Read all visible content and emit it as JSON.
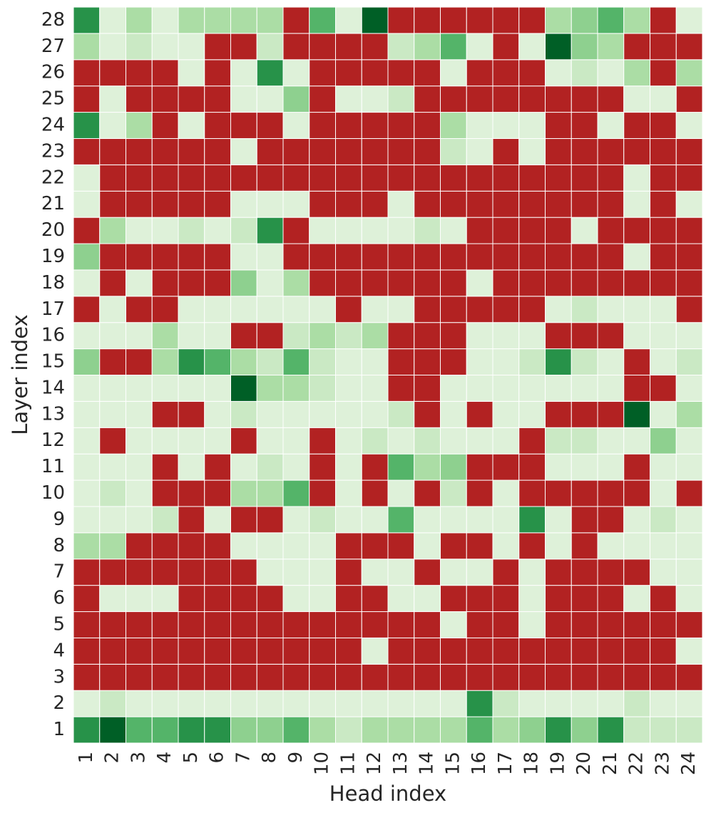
{
  "chart_data": {
    "type": "heatmap",
    "x_label": "Head index",
    "y_label": "Layer index",
    "x": [
      1,
      2,
      3,
      4,
      5,
      6,
      7,
      8,
      9,
      10,
      11,
      12,
      13,
      14,
      15,
      16,
      17,
      18,
      19,
      20,
      21,
      22,
      23,
      24
    ],
    "y": [
      1,
      2,
      3,
      4,
      5,
      6,
      7,
      8,
      9,
      10,
      11,
      12,
      13,
      14,
      15,
      16,
      17,
      18,
      19,
      20,
      21,
      22,
      23,
      24,
      25,
      26,
      27,
      28
    ],
    "colormap": "Greens",
    "vmin": 0,
    "vmax": 1,
    "null_color": "#b22222",
    "z": [
      [
        0.7,
        0.9,
        0.55,
        0.55,
        0.7,
        0.7,
        0.4,
        0.4,
        0.55,
        0.3,
        0.15,
        0.3,
        0.3,
        0.3,
        0.3,
        0.55,
        0.3,
        0.4,
        0.7,
        0.4,
        0.7,
        0.15,
        0.15,
        0.15
      ],
      [
        0.05,
        0.15,
        0.05,
        0.05,
        0.05,
        0.05,
        0.05,
        0.05,
        0.05,
        0.05,
        0.05,
        0.05,
        0.05,
        0.05,
        0.05,
        0.7,
        0.15,
        0.05,
        0.05,
        0.05,
        0.05,
        0.15,
        0.05,
        0.05
      ],
      [
        null,
        null,
        null,
        null,
        null,
        null,
        null,
        null,
        null,
        null,
        null,
        null,
        null,
        null,
        null,
        null,
        null,
        null,
        null,
        null,
        null,
        null,
        null,
        null
      ],
      [
        null,
        null,
        null,
        null,
        null,
        null,
        null,
        null,
        null,
        null,
        null,
        0.05,
        null,
        null,
        null,
        null,
        null,
        null,
        null,
        null,
        null,
        null,
        null,
        0.05
      ],
      [
        null,
        null,
        null,
        null,
        null,
        null,
        null,
        null,
        null,
        null,
        null,
        null,
        null,
        null,
        0.05,
        null,
        null,
        0.05,
        null,
        null,
        null,
        null,
        null,
        null
      ],
      [
        null,
        0.05,
        0.05,
        0.05,
        null,
        null,
        null,
        null,
        0.05,
        0.05,
        null,
        null,
        0.05,
        0.05,
        null,
        null,
        null,
        0.05,
        null,
        null,
        null,
        0.05,
        null,
        0.05
      ],
      [
        null,
        null,
        null,
        null,
        null,
        null,
        null,
        0.05,
        0.05,
        0.05,
        null,
        0.05,
        0.05,
        null,
        0.05,
        0.05,
        null,
        0.05,
        null,
        null,
        null,
        null,
        0.05,
        0.05
      ],
      [
        0.3,
        0.3,
        null,
        null,
        null,
        null,
        0.05,
        0.05,
        0.05,
        0.05,
        null,
        null,
        null,
        0.05,
        null,
        null,
        0.05,
        null,
        0.05,
        null,
        0.05,
        0.05,
        0.05,
        0.05
      ],
      [
        0.05,
        0.05,
        0.05,
        0.15,
        null,
        0.05,
        null,
        null,
        0.05,
        0.15,
        0.05,
        0.05,
        0.55,
        0.05,
        0.05,
        0.05,
        0.05,
        0.7,
        0.05,
        null,
        null,
        0.05,
        0.15,
        0.05
      ],
      [
        0.05,
        0.15,
        0.05,
        null,
        null,
        null,
        0.3,
        0.3,
        0.55,
        null,
        0.05,
        null,
        0.05,
        null,
        0.15,
        null,
        0.05,
        null,
        null,
        null,
        null,
        null,
        0.05,
        null
      ],
      [
        0.05,
        0.05,
        0.05,
        null,
        0.05,
        null,
        0.05,
        0.15,
        0.05,
        null,
        0.05,
        null,
        0.55,
        0.3,
        0.4,
        null,
        null,
        null,
        0.05,
        0.05,
        0.05,
        null,
        0.05,
        0.05
      ],
      [
        0.05,
        null,
        0.05,
        0.05,
        0.05,
        0.05,
        null,
        0.05,
        0.05,
        null,
        0.05,
        0.15,
        0.05,
        0.15,
        0.05,
        0.05,
        0.05,
        null,
        0.15,
        0.15,
        0.05,
        0.05,
        0.4,
        0.05
      ],
      [
        0.05,
        0.05,
        0.05,
        null,
        null,
        0.05,
        0.15,
        0.05,
        0.05,
        0.05,
        0.05,
        0.05,
        0.15,
        null,
        0.05,
        null,
        0.05,
        0.05,
        null,
        null,
        null,
        0.9,
        0.05,
        0.3
      ],
      [
        0.05,
        0.05,
        0.05,
        0.05,
        0.05,
        0.05,
        0.9,
        0.3,
        0.3,
        0.15,
        0.05,
        0.05,
        null,
        null,
        0.05,
        0.05,
        0.05,
        0.05,
        0.05,
        0.05,
        0.05,
        null,
        null,
        0.05
      ],
      [
        0.4,
        null,
        null,
        0.3,
        0.7,
        0.55,
        0.3,
        0.15,
        0.55,
        0.15,
        0.05,
        0.05,
        null,
        null,
        null,
        0.05,
        0.05,
        0.15,
        0.7,
        0.15,
        0.05,
        null,
        0.05,
        0.15
      ],
      [
        0.05,
        0.05,
        0.05,
        0.3,
        0.05,
        0.05,
        null,
        null,
        0.15,
        0.3,
        0.15,
        0.3,
        null,
        null,
        null,
        0.05,
        0.05,
        0.05,
        null,
        null,
        null,
        0.05,
        0.05,
        0.05
      ],
      [
        null,
        0.05,
        null,
        null,
        0.05,
        0.05,
        0.05,
        0.05,
        0.05,
        0.05,
        null,
        0.05,
        0.05,
        null,
        null,
        null,
        null,
        null,
        0.05,
        0.15,
        0.05,
        0.05,
        0.05,
        null
      ],
      [
        0.05,
        null,
        0.05,
        null,
        null,
        null,
        0.4,
        0.05,
        0.3,
        null,
        null,
        null,
        null,
        null,
        null,
        0.05,
        null,
        null,
        null,
        null,
        null,
        null,
        null,
        null
      ],
      [
        0.4,
        null,
        null,
        null,
        null,
        null,
        0.05,
        0.05,
        null,
        null,
        null,
        null,
        null,
        null,
        null,
        null,
        null,
        null,
        null,
        null,
        null,
        0.05,
        null,
        null
      ],
      [
        null,
        0.3,
        0.05,
        0.05,
        0.15,
        0.05,
        0.15,
        0.7,
        null,
        0.05,
        0.05,
        0.05,
        0.05,
        0.15,
        0.05,
        null,
        null,
        null,
        null,
        0.05,
        null,
        null,
        null,
        null
      ],
      [
        0.05,
        null,
        null,
        null,
        null,
        null,
        0.05,
        0.05,
        0.05,
        null,
        null,
        null,
        0.05,
        null,
        null,
        null,
        null,
        null,
        null,
        null,
        null,
        0.05,
        null,
        0.05
      ],
      [
        0.05,
        null,
        null,
        null,
        null,
        null,
        null,
        null,
        null,
        null,
        null,
        null,
        null,
        null,
        null,
        null,
        null,
        null,
        null,
        null,
        null,
        0.05,
        null,
        null
      ],
      [
        null,
        null,
        null,
        null,
        null,
        null,
        0.05,
        null,
        null,
        null,
        null,
        null,
        null,
        null,
        0.15,
        0.05,
        null,
        0.05,
        null,
        null,
        null,
        null,
        null,
        null
      ],
      [
        0.7,
        0.05,
        0.3,
        null,
        0.05,
        null,
        null,
        null,
        0.05,
        null,
        null,
        null,
        null,
        null,
        0.3,
        0.05,
        0.05,
        0.05,
        null,
        null,
        0.05,
        null,
        null,
        0.05
      ],
      [
        null,
        0.05,
        null,
        null,
        null,
        null,
        0.05,
        0.05,
        0.4,
        null,
        0.05,
        0.05,
        0.15,
        null,
        null,
        null,
        null,
        null,
        null,
        null,
        null,
        0.05,
        0.05,
        null
      ],
      [
        null,
        null,
        null,
        null,
        0.05,
        null,
        0.05,
        0.7,
        0.05,
        null,
        null,
        null,
        null,
        null,
        0.05,
        null,
        null,
        null,
        0.05,
        0.15,
        0.05,
        0.3,
        null,
        0.3
      ],
      [
        0.3,
        0.05,
        0.15,
        0.05,
        0.05,
        null,
        null,
        0.15,
        null,
        null,
        null,
        null,
        0.15,
        0.3,
        0.55,
        0.05,
        null,
        0.05,
        0.9,
        0.4,
        0.3,
        null,
        null,
        null
      ],
      [
        0.7,
        0.05,
        0.3,
        0.05,
        0.3,
        0.3,
        0.3,
        0.3,
        null,
        0.55,
        0.05,
        0.9,
        null,
        null,
        null,
        null,
        null,
        null,
        0.3,
        0.4,
        0.55,
        0.3,
        null,
        0.05
      ]
    ]
  }
}
